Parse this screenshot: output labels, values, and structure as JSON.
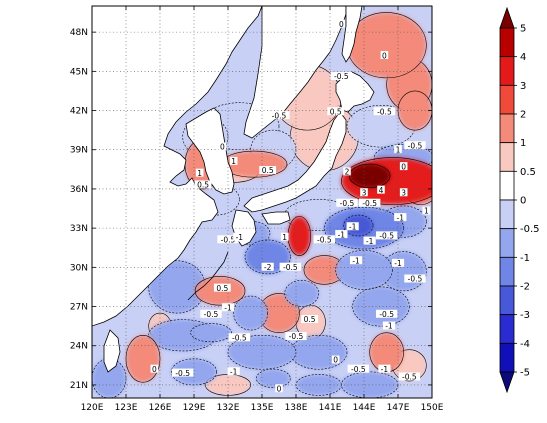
{
  "map": {
    "lon_ticks": [
      "120E",
      "123E",
      "126E",
      "129E",
      "132E",
      "135E",
      "138E",
      "141E",
      "144E",
      "147E",
      "150E"
    ],
    "lat_ticks": [
      "21N",
      "24N",
      "27N",
      "30N",
      "33N",
      "36N",
      "39N",
      "42N",
      "45N",
      "48N"
    ],
    "lon_range": [
      120,
      150
    ],
    "lat_range": [
      20,
      50
    ],
    "contour_labels": [
      {
        "text": "0",
        "lon": 142.0,
        "lat": 48.6
      },
      {
        "text": "0",
        "lon": 145.8,
        "lat": 46.2
      },
      {
        "text": "-0.5",
        "lon": 142.0,
        "lat": 44.6
      },
      {
        "text": "-0.5",
        "lon": 136.5,
        "lat": 41.6
      },
      {
        "text": "0.5",
        "lon": 141.5,
        "lat": 41.9
      },
      {
        "text": "-0.5",
        "lon": 145.8,
        "lat": 41.9
      },
      {
        "text": "-0.5",
        "lon": 148.5,
        "lat": 39.3
      },
      {
        "text": "1",
        "lon": 147.0,
        "lat": 39.0
      },
      {
        "text": "0",
        "lon": 147.5,
        "lat": 37.7
      },
      {
        "text": "0",
        "lon": 131.5,
        "lat": 39.2
      },
      {
        "text": "0.5",
        "lon": 129.8,
        "lat": 36.3
      },
      {
        "text": "0.5",
        "lon": 135.5,
        "lat": 37.4
      },
      {
        "text": "1",
        "lon": 129.5,
        "lat": 37.2
      },
      {
        "text": "1",
        "lon": 132.5,
        "lat": 38.1
      },
      {
        "text": "2",
        "lon": 142.5,
        "lat": 37.3
      },
      {
        "text": "3",
        "lon": 144.0,
        "lat": 35.7
      },
      {
        "text": "4",
        "lon": 145.5,
        "lat": 35.9
      },
      {
        "text": "3",
        "lon": 147.5,
        "lat": 35.7
      },
      {
        "text": "-0.5",
        "lon": 142.5,
        "lat": 34.9
      },
      {
        "text": "-0.5",
        "lon": 144.5,
        "lat": 34.9
      },
      {
        "text": "-1",
        "lon": 147.2,
        "lat": 33.8
      },
      {
        "text": "1",
        "lon": 149.5,
        "lat": 34.3
      },
      {
        "text": "-1",
        "lon": 143.0,
        "lat": 33.1
      },
      {
        "text": "-1",
        "lon": 142.0,
        "lat": 32.5
      },
      {
        "text": "-0.5",
        "lon": 132.0,
        "lat": 32.1
      },
      {
        "text": "-1",
        "lon": 133.0,
        "lat": 32.3
      },
      {
        "text": "1",
        "lon": 137.0,
        "lat": 32.3
      },
      {
        "text": "-0.5",
        "lon": 140.5,
        "lat": 32.1
      },
      {
        "text": "-1",
        "lon": 144.5,
        "lat": 32.0
      },
      {
        "text": "-0.5",
        "lon": 146.0,
        "lat": 32.4
      },
      {
        "text": "-2",
        "lon": 135.5,
        "lat": 30.0
      },
      {
        "text": "-0.5",
        "lon": 137.5,
        "lat": 30.0
      },
      {
        "text": "-1",
        "lon": 143.3,
        "lat": 30.5
      },
      {
        "text": "-1",
        "lon": 147.0,
        "lat": 30.3
      },
      {
        "text": "-0.5",
        "lon": 148.5,
        "lat": 29.1
      },
      {
        "text": "0.5",
        "lon": 131.5,
        "lat": 28.4
      },
      {
        "text": "-1",
        "lon": 132.0,
        "lat": 26.9
      },
      {
        "text": "-0.5",
        "lon": 130.5,
        "lat": 26.4
      },
      {
        "text": "0.5",
        "lon": 139.2,
        "lat": 26.0
      },
      {
        "text": "-0.5",
        "lon": 146.0,
        "lat": 26.4
      },
      {
        "text": "-1",
        "lon": 146.2,
        "lat": 25.5
      },
      {
        "text": "-0.5",
        "lon": 133.0,
        "lat": 24.6
      },
      {
        "text": "-0.5",
        "lon": 138.0,
        "lat": 24.7
      },
      {
        "text": "0",
        "lon": 125.5,
        "lat": 22.2
      },
      {
        "text": "-0.5",
        "lon": 128.0,
        "lat": 21.9
      },
      {
        "text": "-1",
        "lon": 132.5,
        "lat": 22.0
      },
      {
        "text": "-0.5",
        "lon": 143.5,
        "lat": 22.2
      },
      {
        "text": "0",
        "lon": 141.5,
        "lat": 22.9
      },
      {
        "text": "-1",
        "lon": 145.8,
        "lat": 22.2
      },
      {
        "text": "-0.5",
        "lon": 148.0,
        "lat": 21.6
      },
      {
        "text": "0",
        "lon": 136.5,
        "lat": 20.7
      }
    ]
  },
  "colorbar": {
    "labels": [
      "5",
      "4",
      "3",
      "2",
      "1",
      "0.5",
      "0",
      "-0.5",
      "-1",
      "-2",
      "-3",
      "-4",
      "-5"
    ],
    "colors": [
      "#7a0000",
      "#b80000",
      "#e41a1a",
      "#f04a3a",
      "#f38a7a",
      "#f9c8c0",
      "#ffffff",
      "#c8d0f6",
      "#93a6ee",
      "#6f86e6",
      "#4758d8",
      "#2a2bd0",
      "#1110b8",
      "#0b0a78"
    ]
  },
  "field": {
    "colors": {
      "pos_light": "#f9c8c0",
      "pos_mid": "#f38a7a",
      "pos_strong": "#e41a1a",
      "pos_max": "#b80000",
      "pos_core": "#7a0000",
      "neg_light": "#c8d0f6",
      "neg_mid": "#93a6ee",
      "neg_strong": "#6f86e6",
      "neg_max": "#4758d8"
    },
    "blobs": [
      {
        "lon": 140.5,
        "lat": 40.0,
        "rx": 3.0,
        "ry": 2.6,
        "v": 0.5
      },
      {
        "lon": 139.0,
        "lat": 43.0,
        "rx": 3.0,
        "ry": 2.5,
        "v": 0.5
      },
      {
        "lon": 146.0,
        "lat": 47.0,
        "rx": 3.5,
        "ry": 2.5,
        "v": 1.3
      },
      {
        "lon": 148.0,
        "lat": 44.0,
        "rx": 2.0,
        "ry": 2.0,
        "v": 1.2
      },
      {
        "lon": 145.5,
        "lat": 40.8,
        "rx": 3.0,
        "ry": 1.6,
        "v": -0.7
      },
      {
        "lon": 148.5,
        "lat": 42.0,
        "rx": 1.5,
        "ry": 1.5,
        "v": 1.2
      },
      {
        "lon": 146.5,
        "lat": 36.6,
        "rx": 4.5,
        "ry": 1.8,
        "v": 2.6
      },
      {
        "lon": 144.5,
        "lat": 37.0,
        "rx": 1.8,
        "ry": 0.9,
        "v": 4.6
      },
      {
        "lon": 147.5,
        "lat": 38.4,
        "rx": 2.6,
        "ry": 1.0,
        "v": -1.3
      },
      {
        "lon": 149.0,
        "lat": 36.0,
        "rx": 1.5,
        "ry": 1.2,
        "v": 1.6
      },
      {
        "lon": 129.8,
        "lat": 37.9,
        "rx": 1.6,
        "ry": 1.9,
        "v": 1.8
      },
      {
        "lon": 134.3,
        "lat": 37.9,
        "rx": 2.9,
        "ry": 1.0,
        "v": 1.4
      },
      {
        "lon": 132.5,
        "lat": 37.3,
        "rx": 2.2,
        "ry": 0.8,
        "v": 0.9
      },
      {
        "lon": 133.0,
        "lat": 40.8,
        "rx": 3.5,
        "ry": 1.8,
        "v": -0.6
      },
      {
        "lon": 130.0,
        "lat": 40.0,
        "rx": 2.0,
        "ry": 1.5,
        "v": -0.6
      },
      {
        "lon": 131.0,
        "lat": 35.2,
        "rx": 2.0,
        "ry": 1.2,
        "v": -0.6
      },
      {
        "lon": 136.0,
        "lat": 39.0,
        "rx": 2.0,
        "ry": 1.5,
        "v": -0.6
      },
      {
        "lon": 144.0,
        "lat": 33.0,
        "rx": 3.5,
        "ry": 1.6,
        "v": -1.6
      },
      {
        "lon": 143.5,
        "lat": 33.2,
        "rx": 1.3,
        "ry": 0.8,
        "v": -3.0
      },
      {
        "lon": 140.0,
        "lat": 34.0,
        "rx": 3.0,
        "ry": 1.2,
        "v": -0.7
      },
      {
        "lon": 147.5,
        "lat": 33.5,
        "rx": 2.0,
        "ry": 1.2,
        "v": -0.8
      },
      {
        "lon": 138.3,
        "lat": 32.4,
        "rx": 1.0,
        "ry": 1.5,
        "v": 2.2
      },
      {
        "lon": 135.5,
        "lat": 30.8,
        "rx": 2.0,
        "ry": 1.3,
        "v": -2.2
      },
      {
        "lon": 134.2,
        "lat": 32.6,
        "rx": 1.5,
        "ry": 0.9,
        "v": -0.9
      },
      {
        "lon": 140.5,
        "lat": 29.8,
        "rx": 1.8,
        "ry": 1.1,
        "v": 1.3
      },
      {
        "lon": 144.0,
        "lat": 29.8,
        "rx": 2.5,
        "ry": 1.5,
        "v": -1.3
      },
      {
        "lon": 147.5,
        "lat": 29.7,
        "rx": 2.0,
        "ry": 1.5,
        "v": -0.9
      },
      {
        "lon": 131.3,
        "lat": 28.2,
        "rx": 2.2,
        "ry": 1.1,
        "v": 1.5
      },
      {
        "lon": 127.5,
        "lat": 28.5,
        "rx": 2.5,
        "ry": 2.0,
        "v": -0.8
      },
      {
        "lon": 128.0,
        "lat": 24.8,
        "rx": 3.0,
        "ry": 1.2,
        "v": -0.9
      },
      {
        "lon": 130.5,
        "lat": 25.0,
        "rx": 1.8,
        "ry": 0.7,
        "v": -1.1
      },
      {
        "lon": 136.5,
        "lat": 26.5,
        "rx": 1.8,
        "ry": 1.5,
        "v": 1.0
      },
      {
        "lon": 139.3,
        "lat": 25.8,
        "rx": 1.3,
        "ry": 1.3,
        "v": 0.9
      },
      {
        "lon": 134.0,
        "lat": 26.5,
        "rx": 1.5,
        "ry": 1.3,
        "v": -1.0
      },
      {
        "lon": 138.5,
        "lat": 28.0,
        "rx": 1.5,
        "ry": 1.0,
        "v": -1.0
      },
      {
        "lon": 145.5,
        "lat": 27.0,
        "rx": 2.5,
        "ry": 1.5,
        "v": -1.2
      },
      {
        "lon": 135.0,
        "lat": 23.5,
        "rx": 3.0,
        "ry": 1.3,
        "v": -1.1
      },
      {
        "lon": 140.0,
        "lat": 23.5,
        "rx": 2.5,
        "ry": 1.3,
        "v": -0.9
      },
      {
        "lon": 129.0,
        "lat": 22.0,
        "rx": 2.0,
        "ry": 1.0,
        "v": -1.1
      },
      {
        "lon": 124.5,
        "lat": 23.0,
        "rx": 1.5,
        "ry": 1.8,
        "v": 1.2
      },
      {
        "lon": 126.0,
        "lat": 25.5,
        "rx": 1.0,
        "ry": 1.0,
        "v": 0.8
      },
      {
        "lon": 121.5,
        "lat": 21.5,
        "rx": 1.5,
        "ry": 1.5,
        "v": -0.8
      },
      {
        "lon": 146.0,
        "lat": 23.5,
        "rx": 1.5,
        "ry": 1.5,
        "v": 1.4
      },
      {
        "lon": 144.5,
        "lat": 21.0,
        "rx": 2.5,
        "ry": 1.0,
        "v": -1.3
      },
      {
        "lon": 148.0,
        "lat": 22.5,
        "rx": 1.5,
        "ry": 1.2,
        "v": 0.8
      },
      {
        "lon": 140.0,
        "lat": 21.0,
        "rx": 2.0,
        "ry": 0.8,
        "v": -0.8
      },
      {
        "lon": 132.0,
        "lat": 21.0,
        "rx": 2.0,
        "ry": 0.8,
        "v": 0.8
      },
      {
        "lon": 136.0,
        "lat": 21.5,
        "rx": 1.5,
        "ry": 0.7,
        "v": -1.0
      }
    ]
  }
}
